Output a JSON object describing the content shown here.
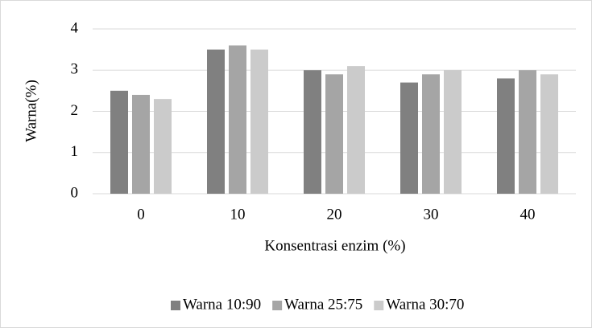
{
  "chart_data": {
    "type": "bar",
    "categories": [
      "0",
      "10",
      "20",
      "30",
      "40"
    ],
    "series": [
      {
        "name": "Warna 10:90",
        "color": "#808080",
        "values": [
          2.5,
          3.5,
          3.0,
          2.7,
          2.8
        ]
      },
      {
        "name": "Warna 25:75",
        "color": "#a5a5a5",
        "values": [
          2.4,
          3.6,
          2.9,
          2.9,
          3.0
        ]
      },
      {
        "name": "Warna 30:70",
        "color": "#cbcbcb",
        "values": [
          2.3,
          3.5,
          3.1,
          3.0,
          2.9
        ]
      }
    ],
    "xlabel": "Konsentrasi enzim (%)",
    "ylabel": "Warna(%)",
    "ylim": [
      0,
      4
    ],
    "yticks": [
      0,
      1,
      2,
      3,
      4
    ],
    "grid": true,
    "legend": "bottom"
  }
}
